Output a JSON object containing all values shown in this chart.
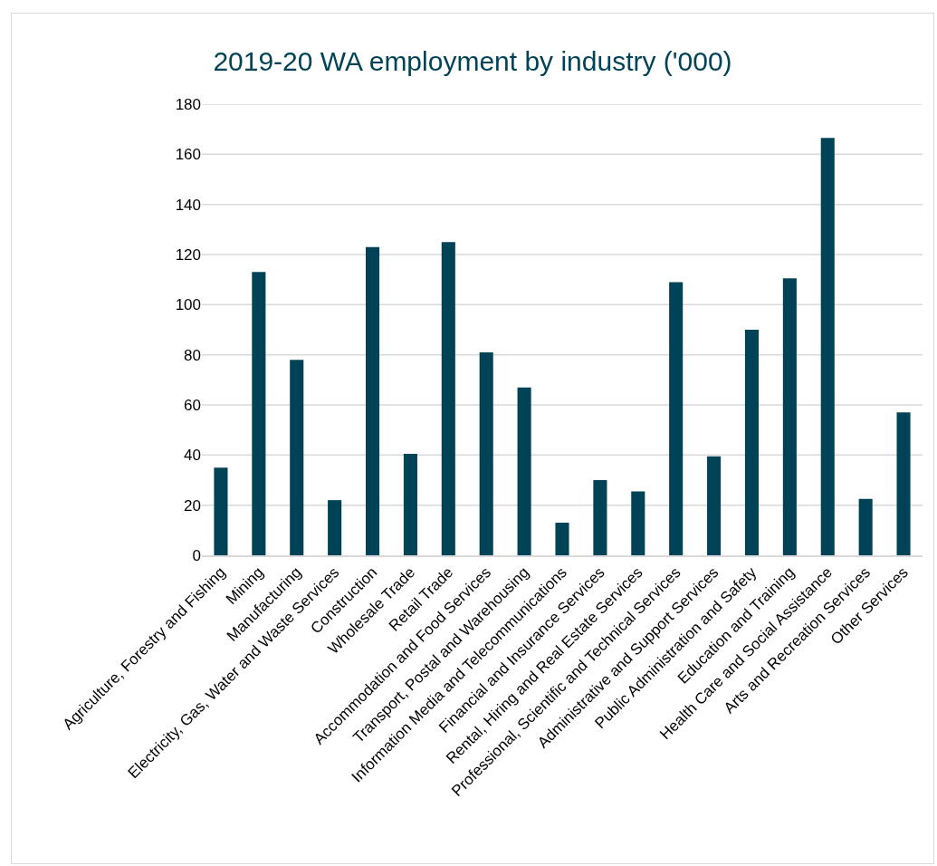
{
  "chart_data": {
    "type": "bar",
    "title": "2019-20 WA employment by industry ('000)",
    "categories": [
      "Agriculture, Forestry and Fishing",
      "Mining",
      "Manufacturing",
      "Electricity, Gas, Water and Waste Services",
      "Construction",
      "Wholesale Trade",
      "Retail Trade",
      "Accommodation and Food Services",
      "Transport, Postal and Warehousing",
      "Information Media and Telecommunications",
      "Financial and Insurance Services",
      "Rental, Hiring and Real Estate Services",
      "Professional, Scientific and Technical Services",
      "Administrative and Support Services",
      "Public Administration and Safety",
      "Education and Training",
      "Health Care and Social Assistance",
      "Arts and Recreation Services",
      "Other Services"
    ],
    "values": [
      35,
      113,
      78,
      22,
      123,
      40.5,
      125,
      81,
      67,
      13,
      30,
      25.5,
      109,
      39.5,
      90,
      110.5,
      166.5,
      22.5,
      57
    ],
    "color": "#004356",
    "ylim": [
      0,
      180
    ],
    "yticks": [
      0,
      20,
      40,
      60,
      80,
      100,
      120,
      140,
      160,
      180
    ],
    "grid": "y"
  }
}
